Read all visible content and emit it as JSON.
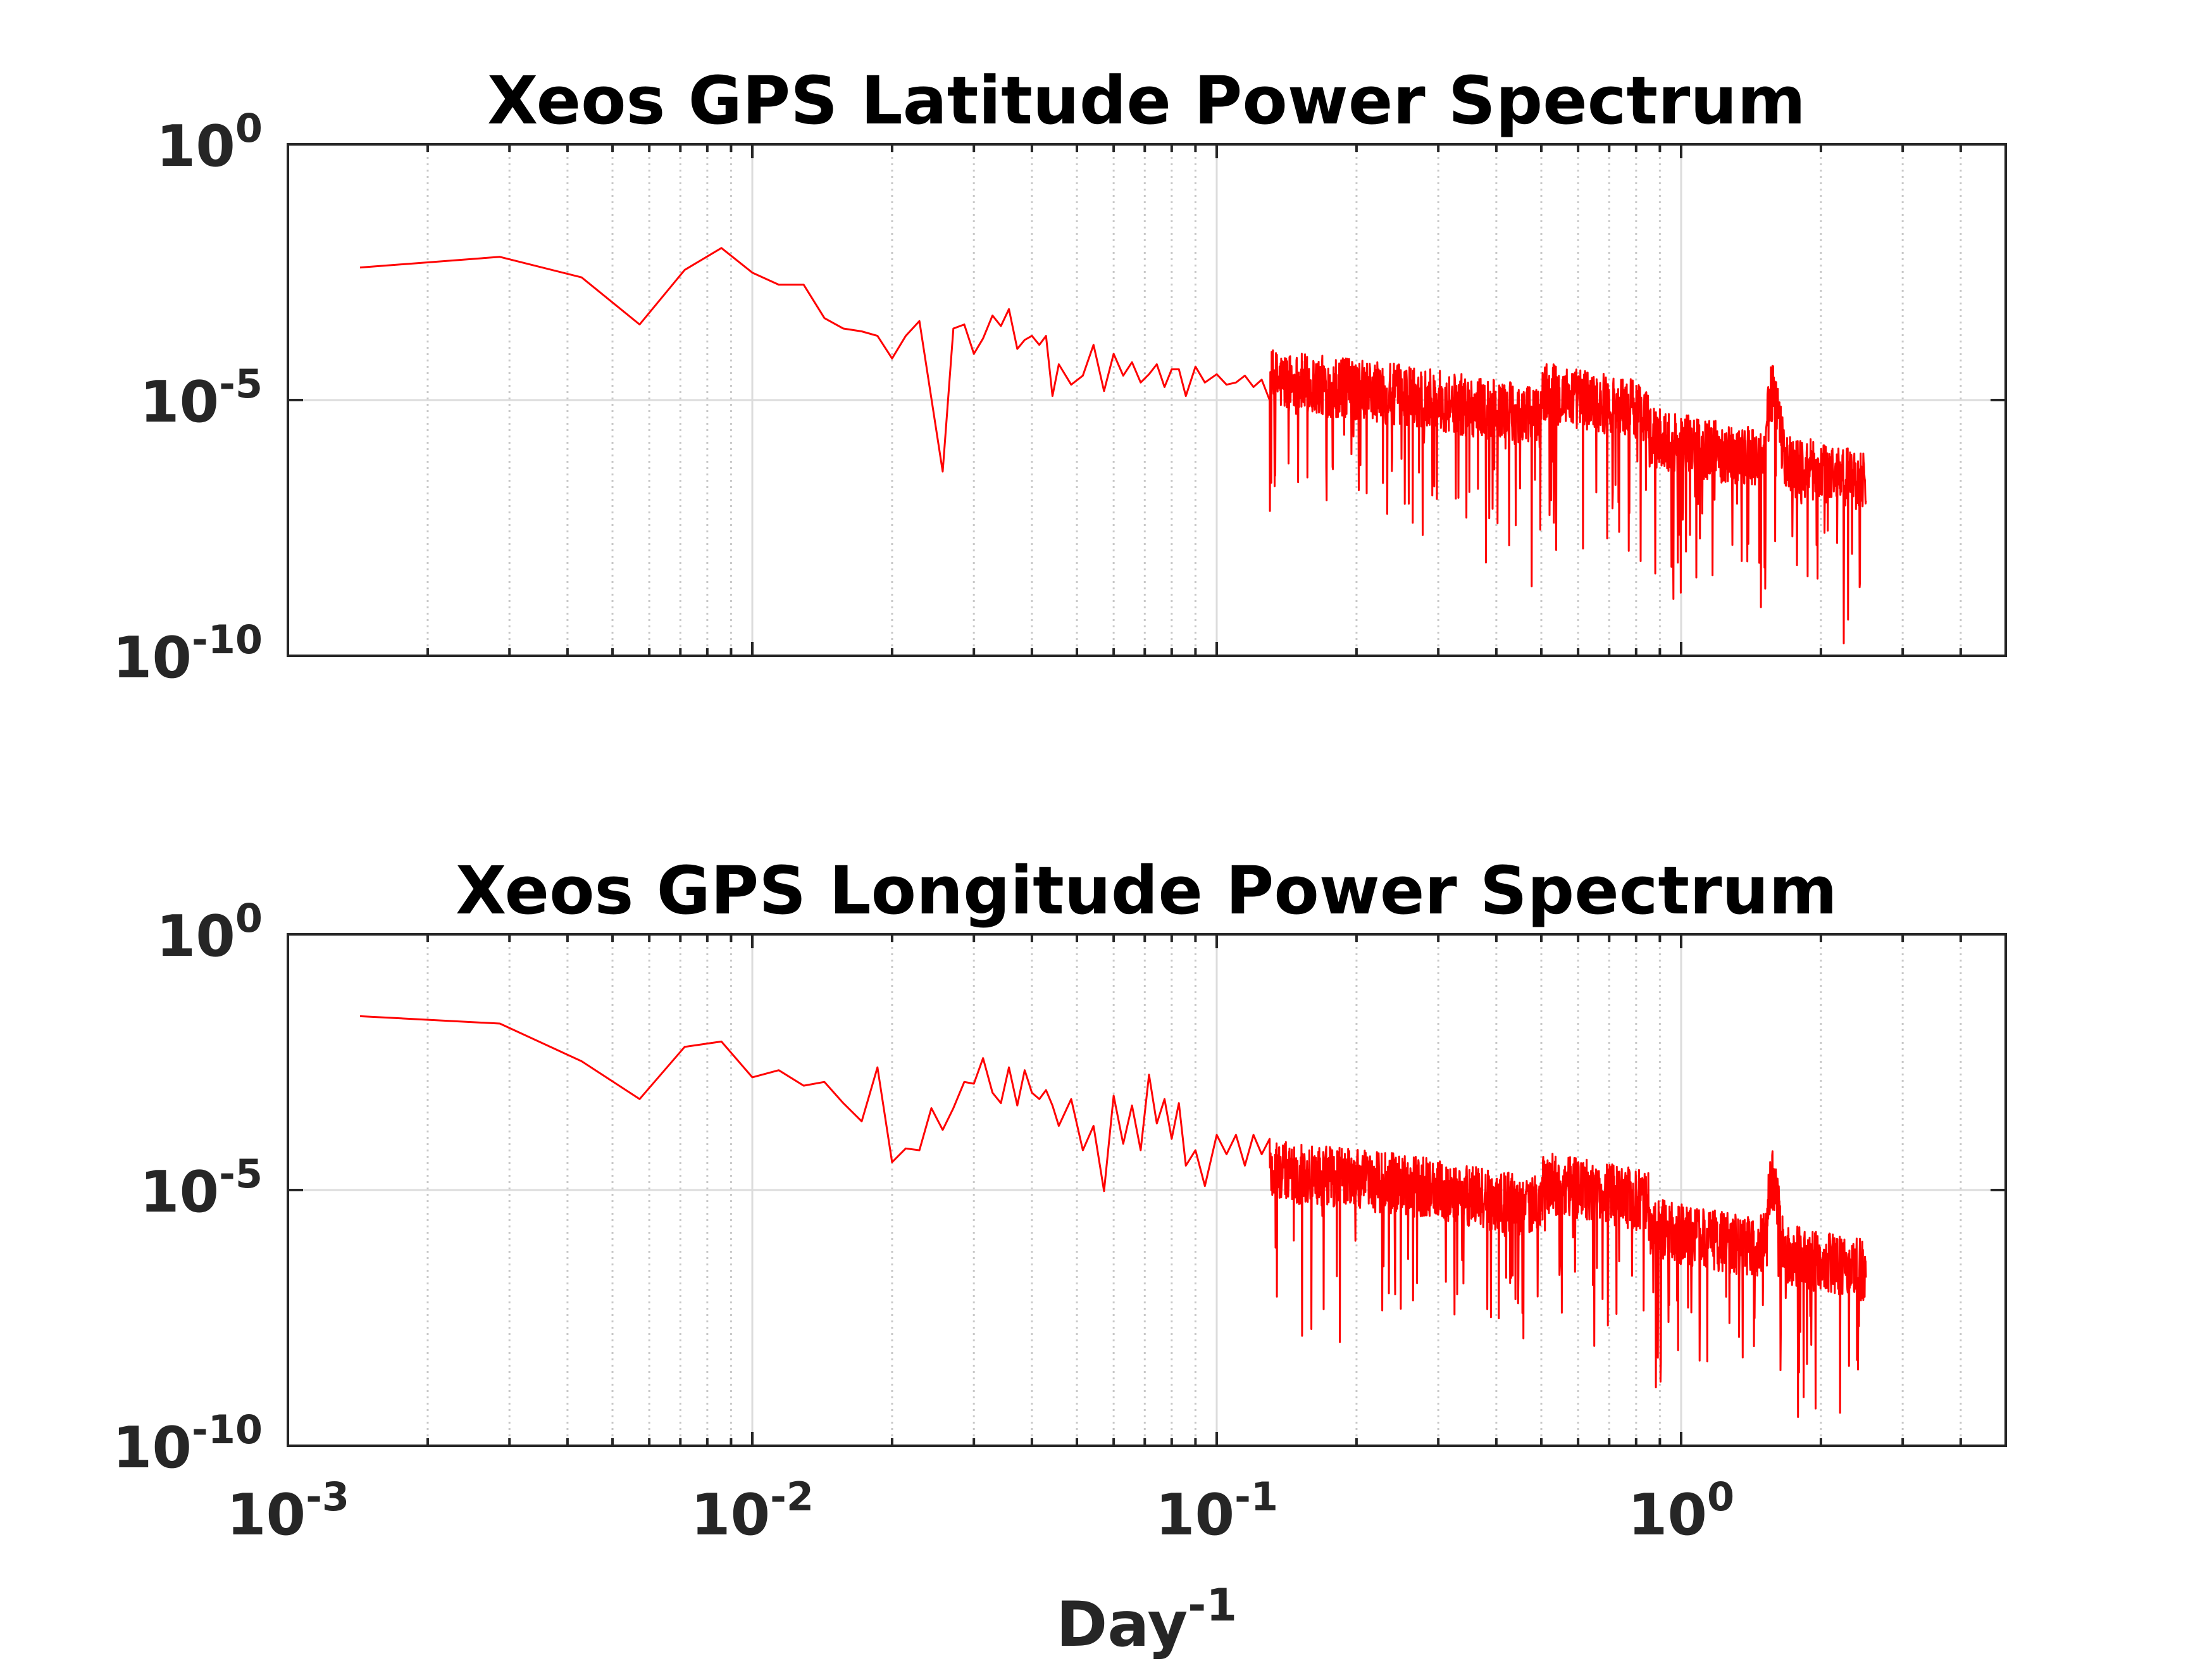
{
  "figure": {
    "xlabel_base": "Day",
    "xlabel_exp": "-1"
  },
  "colors": {
    "series": "#ff0000",
    "axes": "#262626",
    "major_grid": "#dcdcdc",
    "minor_grid": "#c8c8c8"
  },
  "chart_data": [
    {
      "type": "line",
      "title": "Xeos GPS Latitude Power Spectrum",
      "xscale": "log",
      "yscale": "log",
      "xlim": [
        0.001,
        5.0
      ],
      "ylim": [
        1e-10,
        1
      ],
      "xticks": [
        {
          "base": "10",
          "exp": "-3"
        },
        {
          "base": "10",
          "exp": "-2"
        },
        {
          "base": "10",
          "exp": "-1"
        },
        {
          "base": "10",
          "exp": "0"
        }
      ],
      "xtick_labels_visible": false,
      "yticks": [
        {
          "base": "10",
          "exp": "0"
        },
        {
          "base": "10",
          "exp": "-5"
        },
        {
          "base": "10",
          "exp": "-10"
        }
      ],
      "grid": "major and minor",
      "series": [
        {
          "color": "#ff0000",
          "x": [
            0.00143,
            0.00286,
            0.00429,
            0.00572,
            0.00715,
            0.00858,
            0.01,
            0.0114,
            0.0129,
            0.0143,
            0.0157,
            0.0172,
            0.0186,
            0.02,
            0.0214,
            0.0229,
            0.0257,
            0.0271,
            0.0286,
            0.03,
            0.0314,
            0.0329,
            0.0343,
            0.0357,
            0.0372,
            0.0386,
            0.04,
            0.0415,
            0.0429,
            0.0443,
            0.0457,
            0.0486,
            0.0515,
            0.0543,
            0.0572,
            0.06,
            0.0629,
            0.0657,
            0.0686,
            0.0715,
            0.0743,
            0.0772,
            0.08,
            0.0829,
            0.0858,
            0.09,
            0.0943,
            0.1,
            0.105,
            0.11,
            0.115,
            0.12,
            0.125,
            0.13
          ],
          "y": [
            0.0039,
            0.0063,
            0.0025,
            0.0003,
            0.0035,
            0.0094,
            0.0031,
            0.0018,
            0.0018,
            0.0004,
            0.00025,
            0.00022,
            0.00018,
            6.5e-05,
            0.00018,
            0.00035,
            4e-07,
            0.00025,
            0.0003,
            8e-05,
            0.00016,
            0.00045,
            0.00028,
            0.0006,
            0.0001,
            0.00015,
            0.00018,
            0.00012,
            0.00018,
            1.2e-05,
            5e-05,
            2e-05,
            3e-05,
            0.00012,
            1.5e-05,
            8e-05,
            3e-05,
            5.5e-05,
            2.2e-05,
            3.2e-05,
            5e-05,
            1.8e-05,
            4e-05,
            4e-05,
            1.2e-05,
            4.5e-05,
            2.2e-05,
            3.2e-05,
            2e-05,
            2.2e-05,
            3e-05,
            1.8e-05,
            2.5e-05,
            1e-05
          ],
          "noise_floor_regime": "dense irregular spikes from ~0.13 to ~2.5 day^-1, declining from ~1e-5 to ~1e-7 with a peak near 1.6"
        }
      ]
    },
    {
      "type": "line",
      "title": "Xeos GPS Longitude Power Spectrum",
      "xscale": "log",
      "yscale": "log",
      "xlim": [
        0.001,
        5.0
      ],
      "ylim": [
        1e-10,
        1
      ],
      "xticks": [
        {
          "base": "10",
          "exp": "-3"
        },
        {
          "base": "10",
          "exp": "-2"
        },
        {
          "base": "10",
          "exp": "-1"
        },
        {
          "base": "10",
          "exp": "0"
        }
      ],
      "xtick_labels_visible": true,
      "yticks": [
        {
          "base": "10",
          "exp": "0"
        },
        {
          "base": "10",
          "exp": "-5"
        },
        {
          "base": "10",
          "exp": "-10"
        }
      ],
      "grid": "major and minor",
      "series": [
        {
          "color": "#ff0000",
          "x": [
            0.00143,
            0.00286,
            0.00429,
            0.00572,
            0.00715,
            0.00858,
            0.01,
            0.0114,
            0.0129,
            0.0143,
            0.0157,
            0.0172,
            0.0186,
            0.02,
            0.0214,
            0.0229,
            0.0243,
            0.0257,
            0.0271,
            0.0286,
            0.03,
            0.0314,
            0.0329,
            0.0343,
            0.0357,
            0.0372,
            0.0386,
            0.04,
            0.0415,
            0.0429,
            0.0443,
            0.0457,
            0.0486,
            0.0515,
            0.0543,
            0.0572,
            0.06,
            0.0629,
            0.0657,
            0.0686,
            0.0715,
            0.0743,
            0.0772,
            0.08,
            0.0829,
            0.0858,
            0.09,
            0.0943,
            0.1,
            0.105,
            0.11,
            0.115,
            0.12,
            0.125,
            0.13
          ],
          "y": [
            0.025,
            0.018,
            0.0033,
            0.0006,
            0.0063,
            0.008,
            0.0016,
            0.0022,
            0.0011,
            0.0013,
            0.0005,
            0.00022,
            0.0025,
            3.5e-05,
            6.5e-05,
            6e-05,
            0.0004,
            0.00015,
            0.0004,
            0.0013,
            0.0012,
            0.0038,
            0.0008,
            0.0005,
            0.0025,
            0.00045,
            0.0022,
            0.0008,
            0.0006,
            0.0009,
            0.00045,
            0.00018,
            0.0006,
            6e-05,
            0.00018,
            9.5e-06,
            0.0007,
            8e-05,
            0.00045,
            6e-05,
            0.0018,
            0.0002,
            0.0006,
            0.0001,
            0.0005,
            3e-05,
            6e-05,
            1.2e-05,
            0.00012,
            5e-05,
            0.00012,
            3e-05,
            0.00012,
            5e-05,
            0.0001
          ],
          "noise_floor_regime": "dense irregular spikes from ~0.13 to ~2.5 day^-1, declining from ~1e-5 to ~1e-7 with a peak near 1.6"
        }
      ]
    }
  ]
}
